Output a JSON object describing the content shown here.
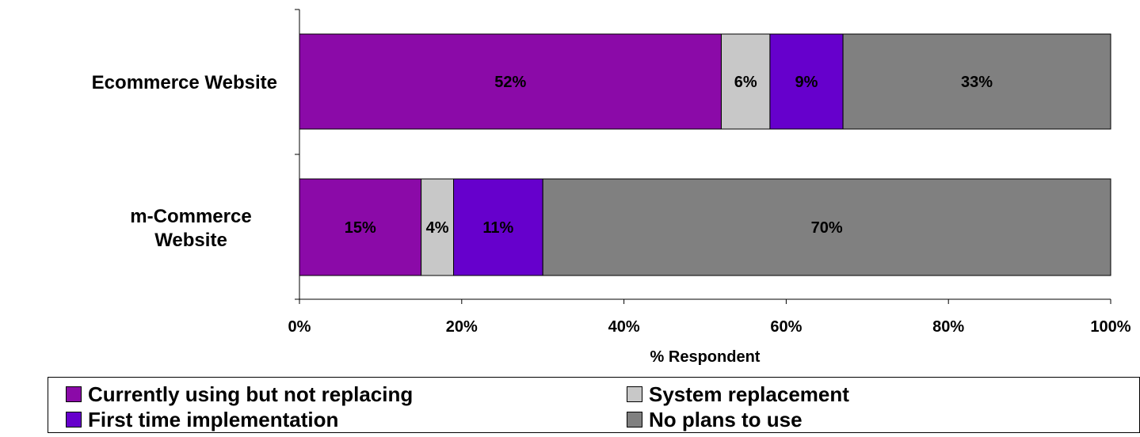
{
  "chart_data": {
    "type": "bar",
    "orientation": "horizontal",
    "stacked": "percent",
    "categories": [
      "Ecommerce Website",
      "m-Commerce Website"
    ],
    "series": [
      {
        "name": "Currently using but not replacing",
        "color": "#8B0AA8",
        "values": [
          52,
          15
        ],
        "labels": [
          "52%",
          "15%"
        ]
      },
      {
        "name": "System replacement",
        "color": "#C8C8C8",
        "values": [
          6,
          4
        ],
        "labels": [
          "6%",
          "4%"
        ]
      },
      {
        "name": "First time implementation",
        "color": "#6600CC",
        "values": [
          9,
          11
        ],
        "labels": [
          "9%",
          "11%"
        ]
      },
      {
        "name": "No plans to use",
        "color": "#808080",
        "values": [
          33,
          70
        ],
        "labels": [
          "33%",
          "70%"
        ]
      }
    ],
    "xlabel": "% Respondent",
    "xlim": [
      0,
      100
    ],
    "xticks": [
      "0%",
      "20%",
      "40%",
      "60%",
      "80%",
      "100%"
    ],
    "legend_position": "bottom",
    "grid": false
  }
}
